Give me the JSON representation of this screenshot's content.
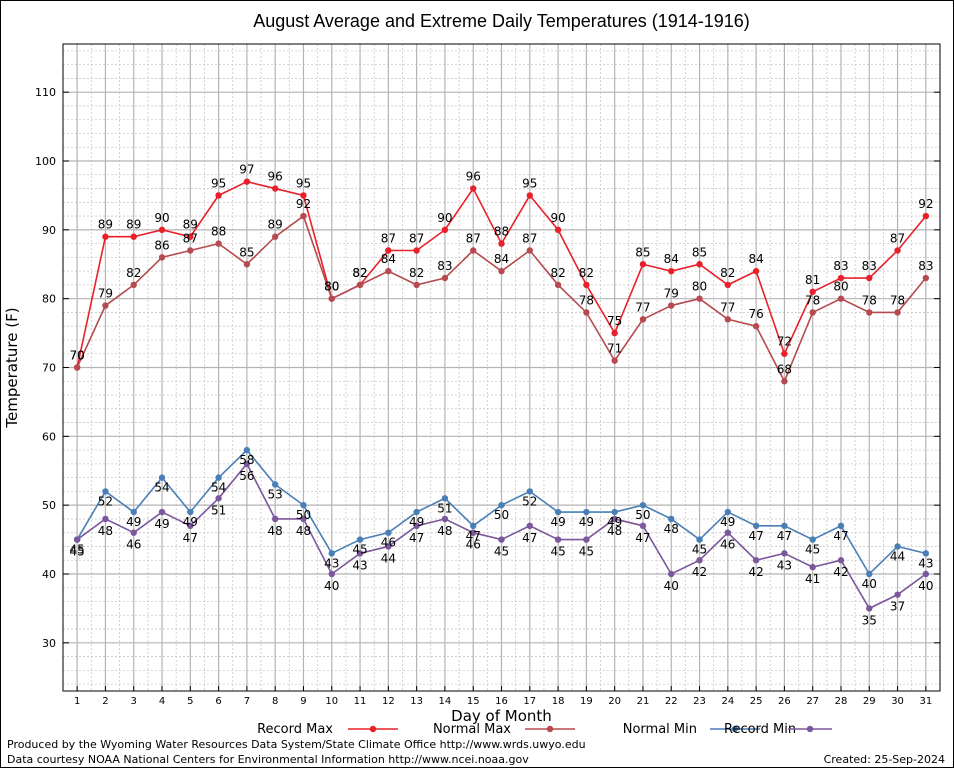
{
  "chart_data": {
    "type": "line",
    "title": "August Average and Extreme Daily Temperatures (1914-1916)",
    "xlabel": "Day of Month",
    "ylabel": "Temperature (F)",
    "x": [
      1,
      2,
      3,
      4,
      5,
      6,
      7,
      8,
      9,
      10,
      11,
      12,
      13,
      14,
      15,
      16,
      17,
      18,
      19,
      20,
      21,
      22,
      23,
      24,
      25,
      26,
      27,
      28,
      29,
      30,
      31
    ],
    "xlim": [
      0.5,
      31.5
    ],
    "ylim": [
      23,
      117
    ],
    "yticks": [
      30,
      40,
      50,
      60,
      70,
      80,
      90,
      100,
      110
    ],
    "grid": true,
    "legend": "bottom",
    "series": [
      {
        "name": "Record Max",
        "color": "#e8202a",
        "values": [
          70,
          89,
          89,
          90,
          89,
          95,
          97,
          96,
          95,
          80,
          82,
          87,
          87,
          90,
          96,
          88,
          95,
          90,
          82,
          75,
          85,
          84,
          85,
          82,
          84,
          72,
          81,
          83,
          83,
          87,
          92
        ]
      },
      {
        "name": "Normal Max",
        "color": "#b54b4f",
        "values": [
          70,
          79,
          82,
          86,
          87,
          88,
          85,
          89,
          92,
          80,
          82,
          84,
          82,
          83,
          87,
          84,
          87,
          82,
          78,
          71,
          77,
          79,
          80,
          77,
          76,
          68,
          78,
          80,
          78,
          78,
          83
        ]
      },
      {
        "name": "Normal Min",
        "color": "#4a7fb5",
        "values": [
          45,
          52,
          49,
          54,
          49,
          54,
          58,
          53,
          50,
          43,
          45,
          46,
          49,
          51,
          47,
          50,
          52,
          49,
          49,
          49,
          50,
          48,
          45,
          49,
          47,
          47,
          45,
          47,
          40,
          44,
          43
        ]
      },
      {
        "name": "Record Min",
        "color": "#7b579b",
        "values": [
          45,
          48,
          46,
          49,
          47,
          51,
          56,
          48,
          48,
          40,
          43,
          44,
          47,
          48,
          46,
          45,
          47,
          45,
          45,
          48,
          47,
          40,
          42,
          46,
          42,
          43,
          41,
          42,
          35,
          37,
          40
        ]
      }
    ]
  },
  "footer": {
    "produced": "Produced by the Wyoming Water Resources Data System/State Climate Office http://www.wrds.uwyo.edu",
    "courtesy": "Data courtesy NOAA National Centers for Environmental Information http://www.ncei.noaa.gov",
    "created": "Created:  25-Sep-2024"
  }
}
